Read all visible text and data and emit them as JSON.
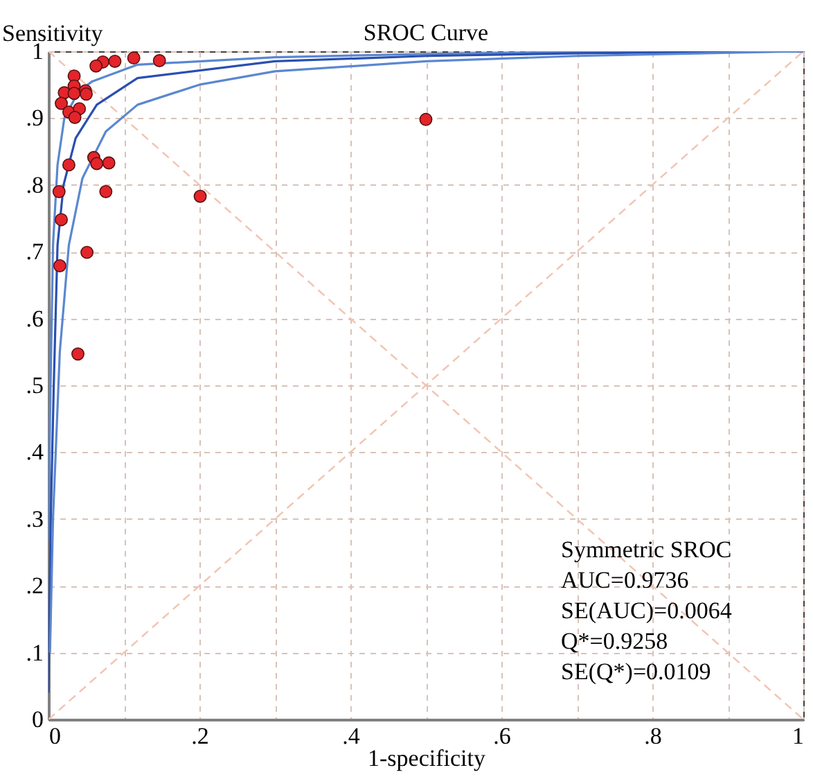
{
  "chart_data": {
    "type": "scatter",
    "title": "SROC Curve",
    "xlabel": "1-specificity",
    "ylabel": "Sensitivity",
    "xlim": [
      0,
      1
    ],
    "ylim": [
      0,
      1
    ],
    "xticks": [
      0,
      {
        "value": 0.1,
        "label": null
      },
      {
        "value": 0.2,
        "label": ".2"
      },
      {
        "value": 0.3,
        "label": null
      },
      {
        "value": 0.4,
        "label": ".4"
      },
      {
        "value": 0.5,
        "label": null
      },
      {
        "value": 0.6,
        "label": ".6"
      },
      {
        "value": 0.7,
        "label": null
      },
      {
        "value": 0.8,
        "label": ".8"
      },
      {
        "value": 0.9,
        "label": null
      },
      1
    ],
    "yticks": [
      0,
      {
        "value": 0.1,
        "label": ".1"
      },
      {
        "value": 0.2,
        "label": ".2"
      },
      {
        "value": 0.3,
        "label": ".3"
      },
      {
        "value": 0.4,
        "label": ".4"
      },
      {
        "value": 0.5,
        "label": ".5"
      },
      {
        "value": 0.6,
        "label": ".6"
      },
      {
        "value": 0.7,
        "label": ".7"
      },
      {
        "value": 0.8,
        "label": ".8"
      },
      {
        "value": 0.9,
        "label": ".9"
      },
      1
    ],
    "grid": true,
    "series": [
      {
        "type": "line",
        "color": "#f2c4b2",
        "line_style": "dashed",
        "x": [
          0,
          1
        ],
        "values": [
          0,
          1
        ]
      },
      {
        "type": "line",
        "color": "#f2c4b2",
        "line_style": "dashed",
        "x": [
          0,
          1
        ],
        "values": [
          1,
          0
        ]
      },
      {
        "type": "line",
        "color": "#5b87d0",
        "line_style": "solid",
        "x": [
          0,
          0.002,
          0.006,
          0.012,
          0.021,
          0.04,
          0.058,
          0.118,
          0.3,
          0.5,
          0.7,
          1
        ],
        "values": [
          0.27,
          0.45,
          0.71,
          0.83,
          0.9,
          0.94,
          0.955,
          0.98,
          0.991,
          0.996,
          0.999,
          1
        ]
      },
      {
        "type": "line",
        "color": "#2a4fb0",
        "line_style": "solid",
        "x": [
          0,
          0.003,
          0.007,
          0.012,
          0.02,
          0.036,
          0.064,
          0.118,
          0.3,
          0.5,
          0.7,
          1
        ],
        "values": [
          0.04,
          0.3,
          0.5,
          0.71,
          0.8,
          0.87,
          0.92,
          0.96,
          0.985,
          0.993,
          0.997,
          1
        ]
      },
      {
        "type": "line",
        "color": "#5b87d0",
        "line_style": "solid",
        "x": [
          0.002,
          0.006,
          0.015,
          0.027,
          0.045,
          0.076,
          0.118,
          0.2,
          0.3,
          0.5,
          0.7,
          1
        ],
        "values": [
          0.1,
          0.3,
          0.55,
          0.71,
          0.81,
          0.88,
          0.92,
          0.95,
          0.97,
          0.985,
          0.993,
          1
        ]
      },
      {
        "type": "scatter",
        "color": "#e3242b",
        "marker": "circle",
        "x": [
          0.113,
          0.147,
          0.088,
          0.072,
          0.063,
          0.034,
          0.034,
          0.021,
          0.034,
          0.049,
          0.05,
          0.017,
          0.027,
          0.041,
          0.035,
          0.06,
          0.064,
          0.08,
          0.027,
          0.014,
          0.076,
          0.201,
          0.017,
          0.015,
          0.051,
          0.039,
          0.5
        ],
        "values": [
          0.99,
          0.986,
          0.985,
          0.984,
          0.978,
          0.963,
          0.948,
          0.938,
          0.937,
          0.941,
          0.936,
          0.922,
          0.909,
          0.914,
          0.901,
          0.841,
          0.832,
          0.833,
          0.83,
          0.79,
          0.79,
          0.783,
          0.748,
          0.679,
          0.699,
          0.547,
          0.898
        ]
      }
    ],
    "annotations": [
      "Symmetric SROC",
      "AUC=0.9736",
      "SE(AUC)=0.0064",
      "Q*=0.9258",
      "SE(Q*)=0.0109"
    ]
  }
}
